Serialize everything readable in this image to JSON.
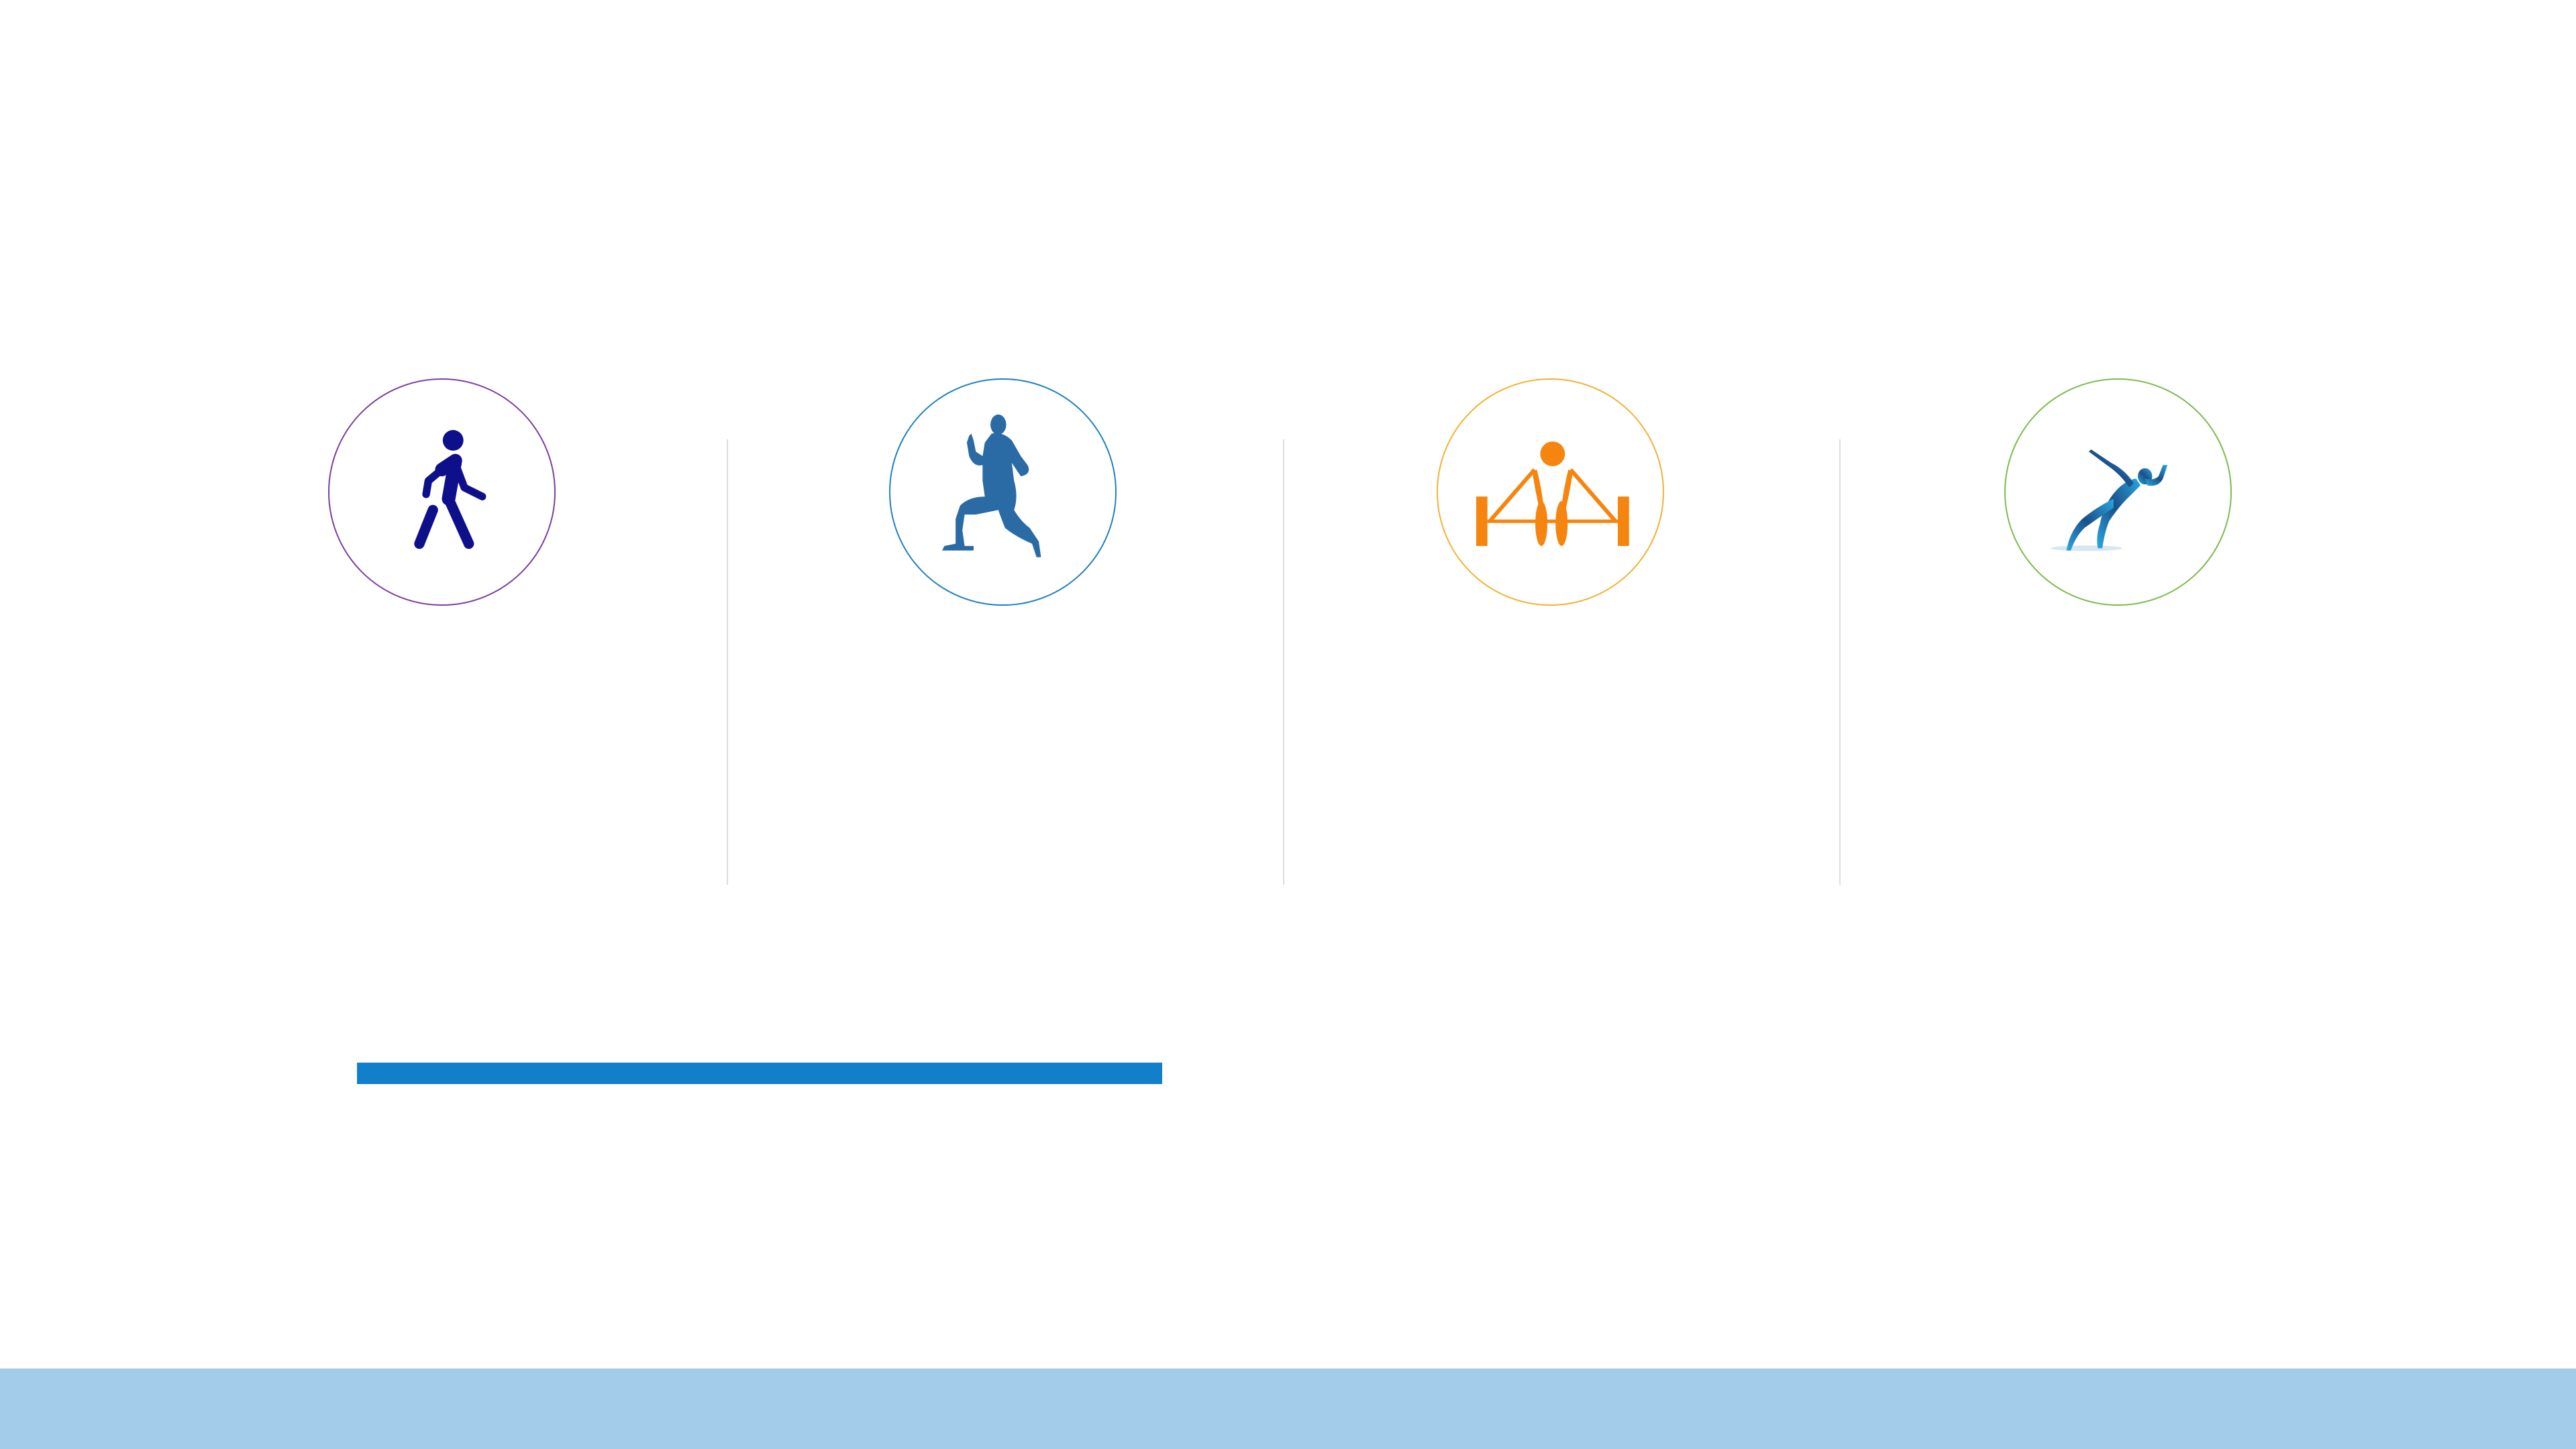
{
  "theme": {
    "walk_ring": "#7b3fa0",
    "walk_icon": "#0e0f8a",
    "run_ring": "#1f7fc4",
    "run_icon": "#2a6aa5",
    "lift_ring": "#f2b134",
    "lift_icon": "#f5850f",
    "sprint_ring": "#7cba50",
    "sprint_icon": "#29a8e0",
    "sprint_icon_dark": "#1b4f8a",
    "divider": "#dddddd",
    "accent_bar": "#127fcb",
    "footer_band": "#a3cbea"
  },
  "icons": [
    {
      "name": "walking-person-icon"
    },
    {
      "name": "running-man-icon"
    },
    {
      "name": "weightlifter-icon"
    },
    {
      "name": "sprinter-icon"
    }
  ]
}
